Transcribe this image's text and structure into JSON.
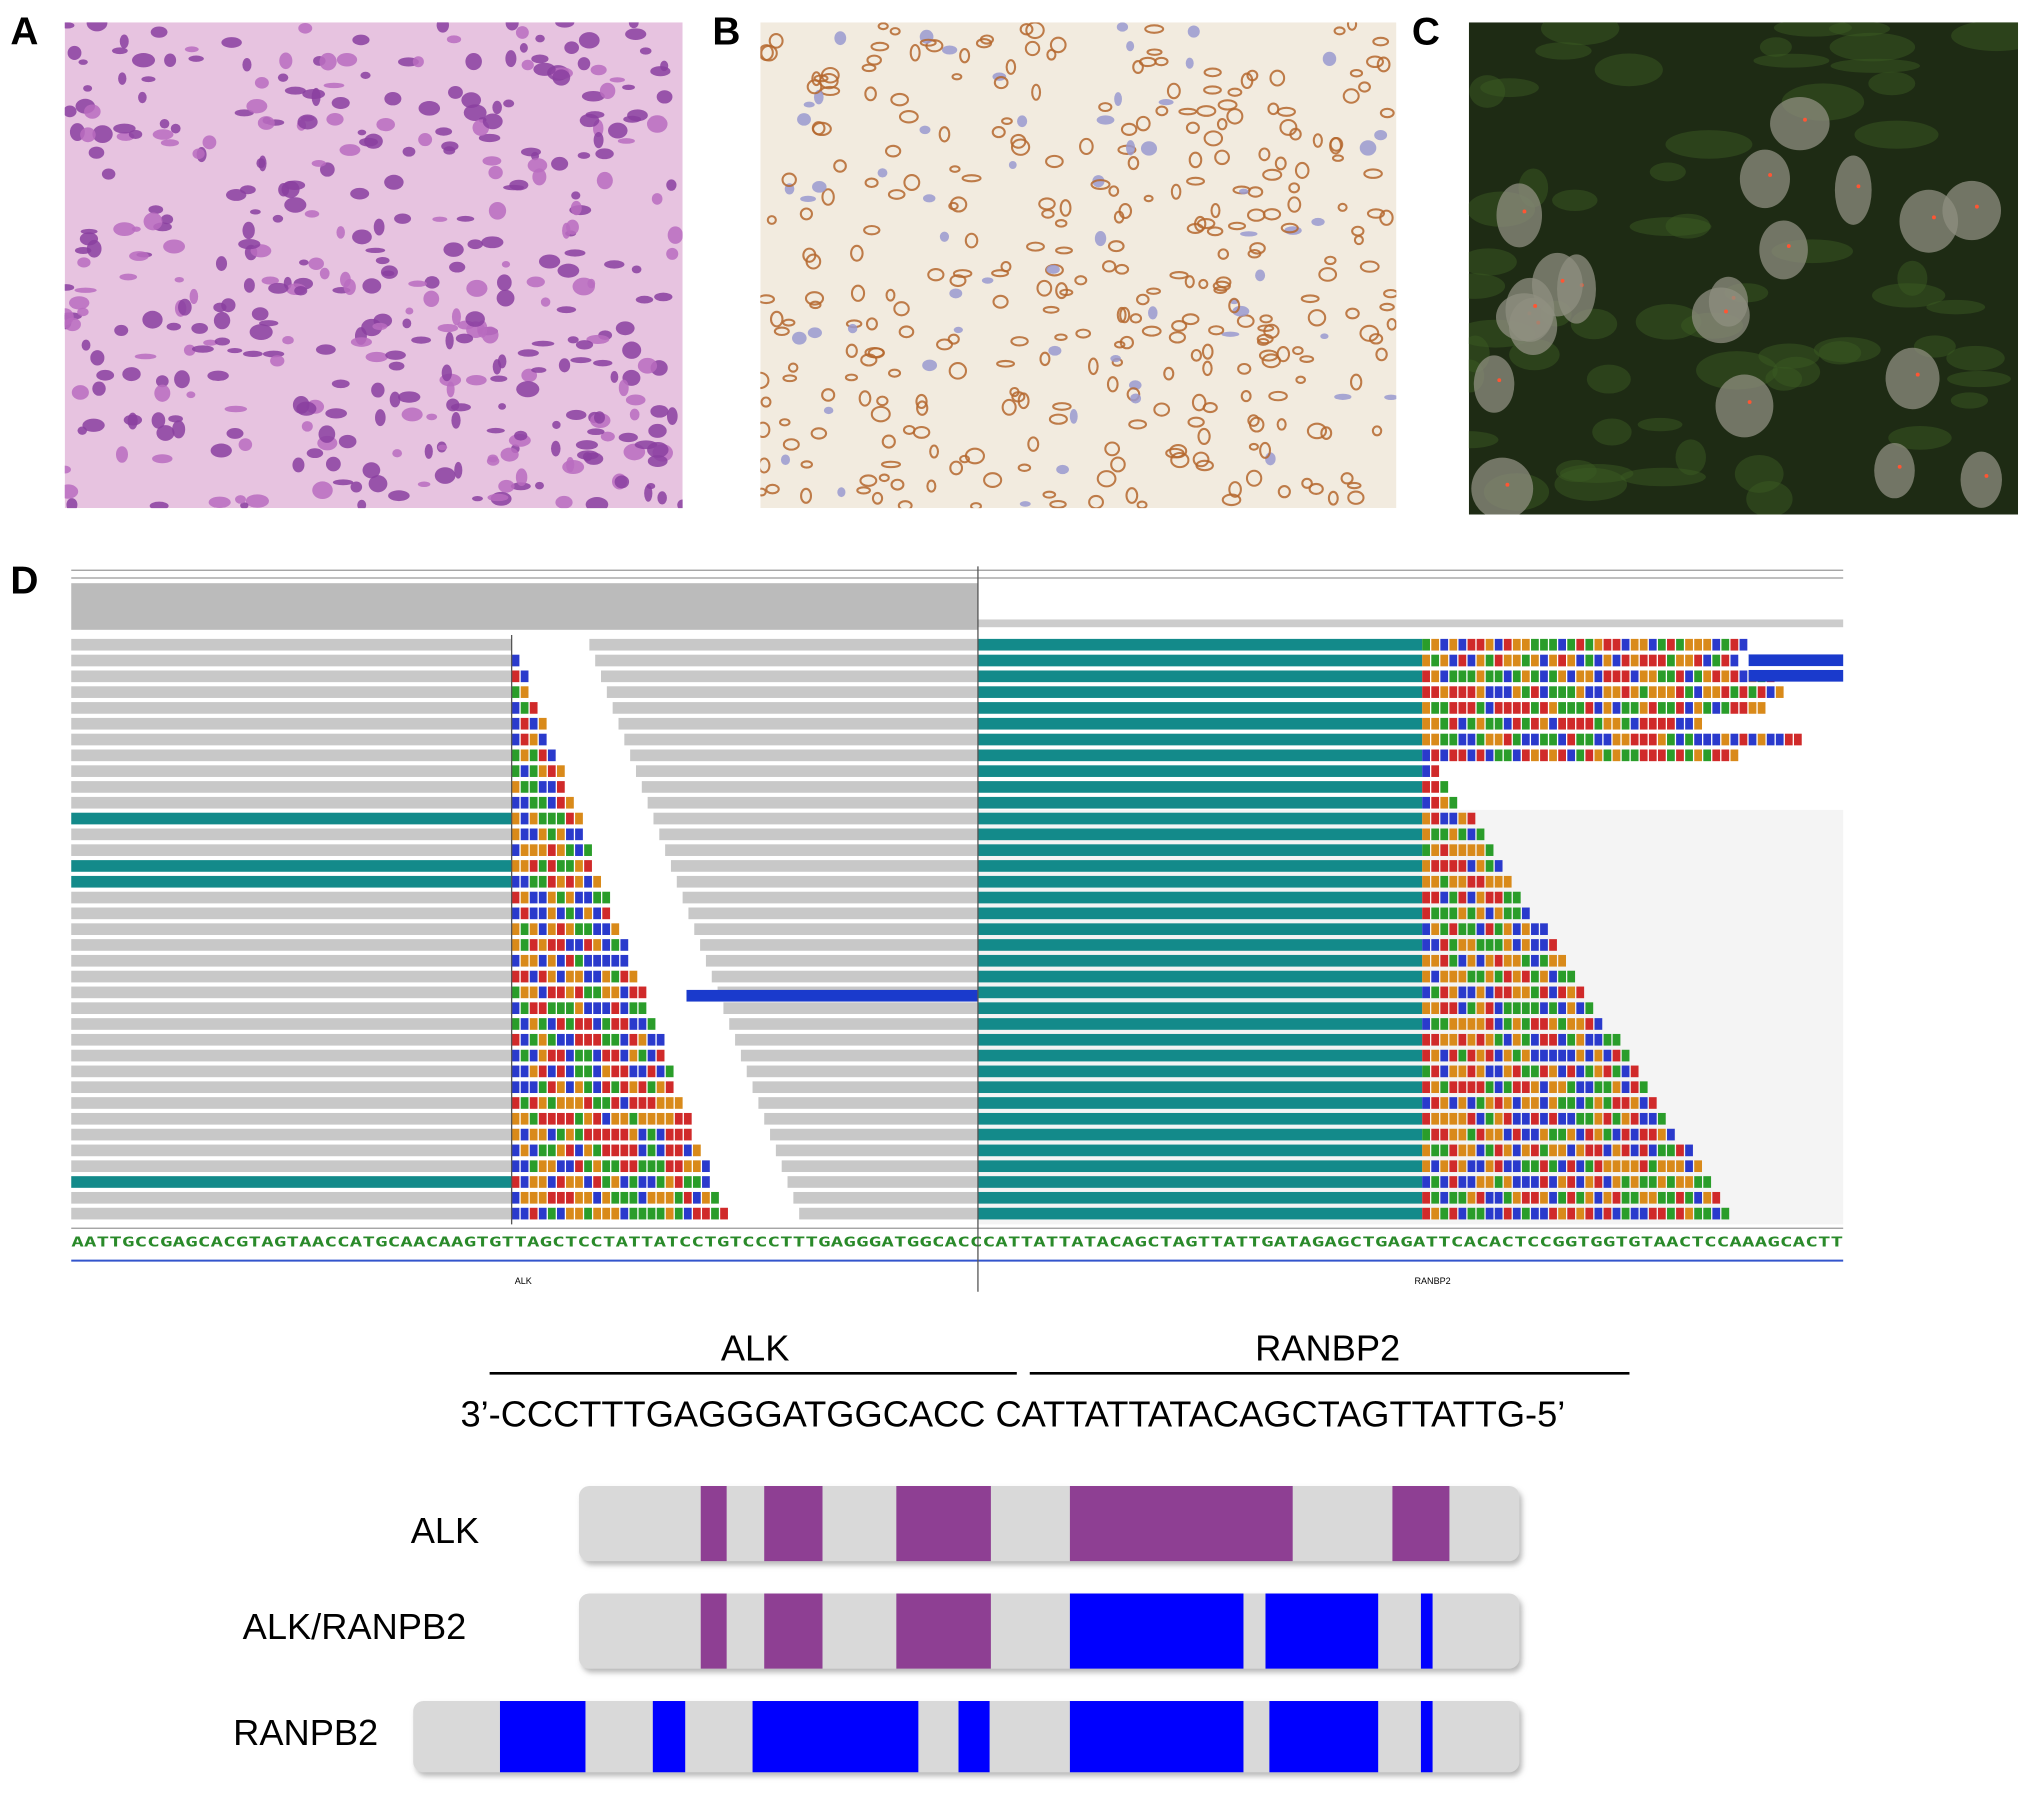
{
  "panels": {
    "a": {
      "label": "A"
    },
    "b": {
      "label": "B"
    },
    "c": {
      "label": "C"
    },
    "d": {
      "label": "D"
    }
  },
  "igv": {
    "reference_sequence": "AATTGCCGAGCACGTAGTAACCATGCAACAAGTGTTAGCTCCTATTATCCTGTCCCTTTGAGGGATGGCACCCATTATTATACAGCTAGTTATTGATAGAGCTGAGATTCACACTCCGGTGGTGTAACTCCAAAGCACTT",
    "gene_left": "ALK",
    "gene_right": "RANBP2"
  },
  "fusion": {
    "header_left": "ALK",
    "header_right": "RANBP2",
    "sequence": "3’-CCCTTTGAGGGATGGCACC CATTATTATACAGCTAGTTATTG-5’"
  },
  "domains": {
    "rows": [
      {
        "label": "ALK"
      },
      {
        "label": "ALK/RANPB2"
      },
      {
        "label": "RANPB2"
      }
    ]
  }
}
